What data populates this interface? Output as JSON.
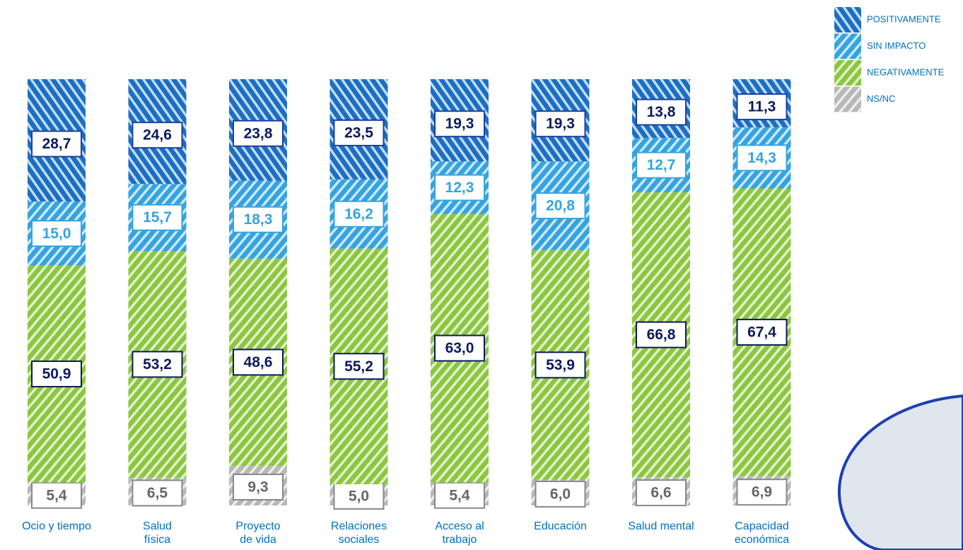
{
  "chart_data": {
    "type": "stacked-bar",
    "categories": [
      "Ocio y tiempo",
      "Salud\nfísica",
      "Proyecto\nde vida",
      "Relaciones\nsociales",
      "Acceso al\ntrabajo",
      "Educación",
      "Salud mental",
      "Capacidad\neconómica"
    ],
    "series": [
      {
        "name": "NS/NC",
        "color": "#b8b8b8",
        "values": [
          5.4,
          6.5,
          9.3,
          5.0,
          5.4,
          6.0,
          6.6,
          6.9
        ],
        "value_labels": [
          "5,4",
          "6,5",
          "9,3",
          "5,0",
          "5,4",
          "6,0",
          "6,6",
          "6,9"
        ]
      },
      {
        "name": "NEGATIVAMENTE",
        "color": "#8cc63f",
        "values": [
          50.9,
          53.2,
          48.6,
          55.2,
          63.0,
          53.9,
          66.8,
          67.4
        ],
        "value_labels": [
          "50,9",
          "53,2",
          "48,6",
          "55,2",
          "63,0",
          "53,9",
          "66,8",
          "67,4"
        ]
      },
      {
        "name": "SIN IMPACTO",
        "color": "#35a3e0",
        "values": [
          15.0,
          15.7,
          18.3,
          16.2,
          12.3,
          20.8,
          12.7,
          14.3
        ],
        "value_labels": [
          "15,0",
          "15,7",
          "18,3",
          "16,2",
          "12,3",
          "20,8",
          "12,7",
          "14,3"
        ]
      },
      {
        "name": "POSITIVAMENTE",
        "color": "#1a6fc4",
        "values": [
          28.7,
          24.6,
          23.8,
          23.5,
          19.3,
          19.3,
          13.8,
          11.3
        ],
        "value_labels": [
          "28,7",
          "24,6",
          "23,8",
          "23,5",
          "19,3",
          "19,3",
          "13,8",
          "11,3"
        ]
      }
    ]
  }
}
